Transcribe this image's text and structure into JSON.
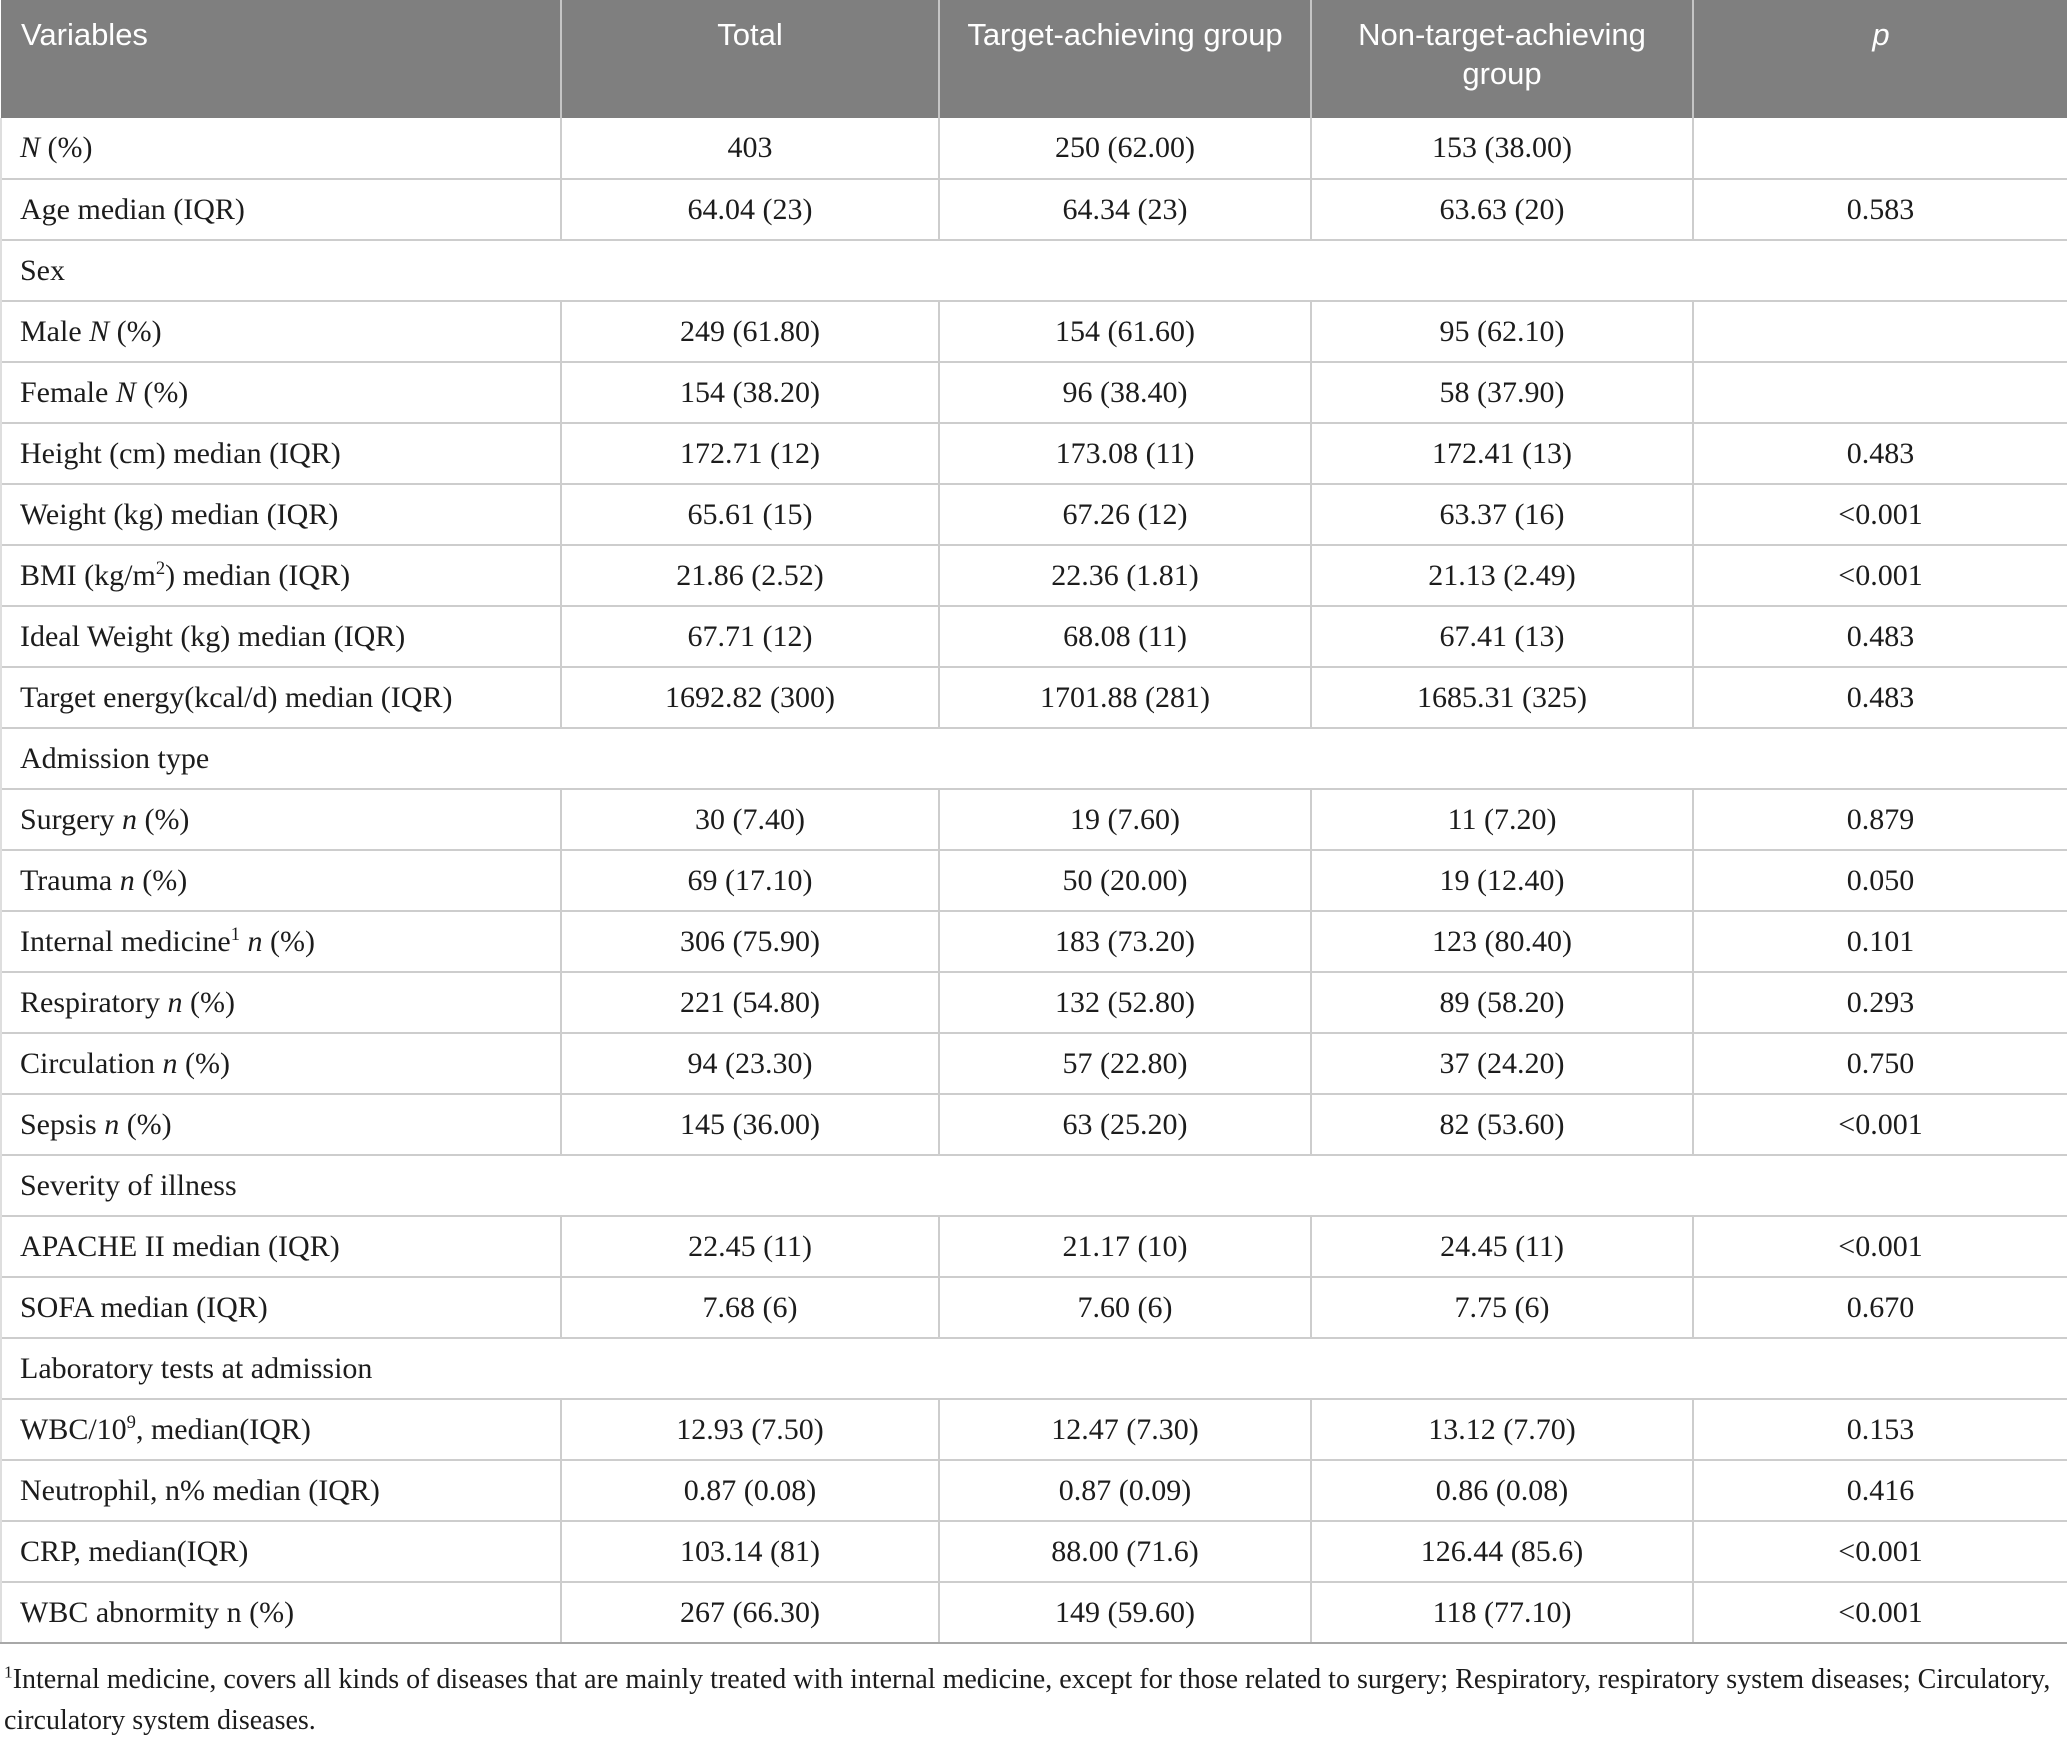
{
  "table": {
    "header_bg": "#7f7f7f",
    "header_text_color": "#ffffff",
    "body_text_color": "#1c1c1c",
    "grid_line_color": "#cdcdcd",
    "columns": [
      {
        "label": "Variables"
      },
      {
        "label": "Total"
      },
      {
        "label": "Target-achieving group"
      },
      {
        "label": "Non-target-achieving group"
      },
      {
        "label": "*p*"
      }
    ],
    "rows": [
      {
        "type": "data",
        "label": "*N* (%)",
        "total": "403",
        "target": "250 (62.00)",
        "nontarget": "153 (38.00)",
        "p": ""
      },
      {
        "type": "data",
        "label": "Age median (IQR)",
        "total": "64.04 (23)",
        "target": "64.34 (23)",
        "nontarget": "63.63 (20)",
        "p": "0.583"
      },
      {
        "type": "section",
        "label": "Sex"
      },
      {
        "type": "data",
        "label": "Male *N* (%)",
        "total": "249 (61.80)",
        "target": "154 (61.60)",
        "nontarget": "95 (62.10)",
        "p": ""
      },
      {
        "type": "data",
        "label": "Female *N* (%)",
        "total": "154 (38.20)",
        "target": "96 (38.40)",
        "nontarget": "58 (37.90)",
        "p": ""
      },
      {
        "type": "data",
        "label": "Height (cm) median (IQR)",
        "total": "172.71 (12)",
        "target": "173.08 (11)",
        "nontarget": "172.41 (13)",
        "p": "0.483"
      },
      {
        "type": "data",
        "label": "Weight (kg) median (IQR)",
        "total": "65.61 (15)",
        "target": "67.26 (12)",
        "nontarget": "63.37 (16)",
        "p": "<0.001"
      },
      {
        "type": "data",
        "label": "BMI (kg/m^2^) median (IQR)",
        "total": "21.86 (2.52)",
        "target": "22.36 (1.81)",
        "nontarget": "21.13 (2.49)",
        "p": "<0.001"
      },
      {
        "type": "data",
        "label": "Ideal Weight (kg) median (IQR)",
        "total": "67.71 (12)",
        "target": "68.08 (11)",
        "nontarget": "67.41 (13)",
        "p": "0.483"
      },
      {
        "type": "data",
        "label": "Target energy(kcal/d) median (IQR)",
        "total": "1692.82 (300)",
        "target": "1701.88 (281)",
        "nontarget": "1685.31 (325)",
        "p": "0.483"
      },
      {
        "type": "section",
        "label": "Admission type"
      },
      {
        "type": "data",
        "label": "Surgery *n* (%)",
        "total": "30 (7.40)",
        "target": "19 (7.60)",
        "nontarget": "11 (7.20)",
        "p": "0.879"
      },
      {
        "type": "data",
        "label": "Trauma *n* (%)",
        "total": "69 (17.10)",
        "target": "50 (20.00)",
        "nontarget": "19 (12.40)",
        "p": "0.050"
      },
      {
        "type": "data",
        "label": "Internal medicine^1^ *n* (%)",
        "total": "306 (75.90)",
        "target": "183 (73.20)",
        "nontarget": "123 (80.40)",
        "p": "0.101"
      },
      {
        "type": "data",
        "label": "Respiratory *n* (%)",
        "total": "221 (54.80)",
        "target": "132 (52.80)",
        "nontarget": "89 (58.20)",
        "p": "0.293"
      },
      {
        "type": "data",
        "label": "Circulation *n* (%)",
        "total": "94 (23.30)",
        "target": "57 (22.80)",
        "nontarget": "37 (24.20)",
        "p": "0.750"
      },
      {
        "type": "data",
        "label": "Sepsis *n* (%)",
        "total": "145 (36.00)",
        "target": "63 (25.20)",
        "nontarget": "82 (53.60)",
        "p": "<0.001"
      },
      {
        "type": "section",
        "label": "Severity of illness"
      },
      {
        "type": "data",
        "label": "APACHE II median (IQR)",
        "total": "22.45 (11)",
        "target": "21.17 (10)",
        "nontarget": "24.45 (11)",
        "p": "<0.001"
      },
      {
        "type": "data",
        "label": "SOFA median (IQR)",
        "total": "7.68 (6)",
        "target": "7.60 (6)",
        "nontarget": "7.75 (6)",
        "p": "0.670"
      },
      {
        "type": "section",
        "label": "Laboratory tests at admission"
      },
      {
        "type": "data",
        "label": "WBC/10^9^, median(IQR)",
        "total": "12.93 (7.50)",
        "target": "12.47 (7.30)",
        "nontarget": "13.12 (7.70)",
        "p": "0.153"
      },
      {
        "type": "data",
        "label": "Neutrophil, n% median (IQR)",
        "total": "0.87 (0.08)",
        "target": "0.87 (0.09)",
        "nontarget": "0.86 (0.08)",
        "p": "0.416"
      },
      {
        "type": "data",
        "label": "CRP, median(IQR)",
        "total": "103.14 (81)",
        "target": "88.00 (71.6)",
        "nontarget": "126.44 (85.6)",
        "p": "<0.001"
      },
      {
        "type": "data",
        "label": "WBC abnormity n (%)",
        "total": "267 (66.30)",
        "target": "149 (59.60)",
        "nontarget": "118 (77.10)",
        "p": "<0.001"
      }
    ]
  },
  "footnote": "^1^Internal medicine, covers all kinds of diseases that are mainly treated with internal medicine, except for those related to surgery; Respiratory, respiratory system diseases; Circulatory, circulatory system diseases."
}
